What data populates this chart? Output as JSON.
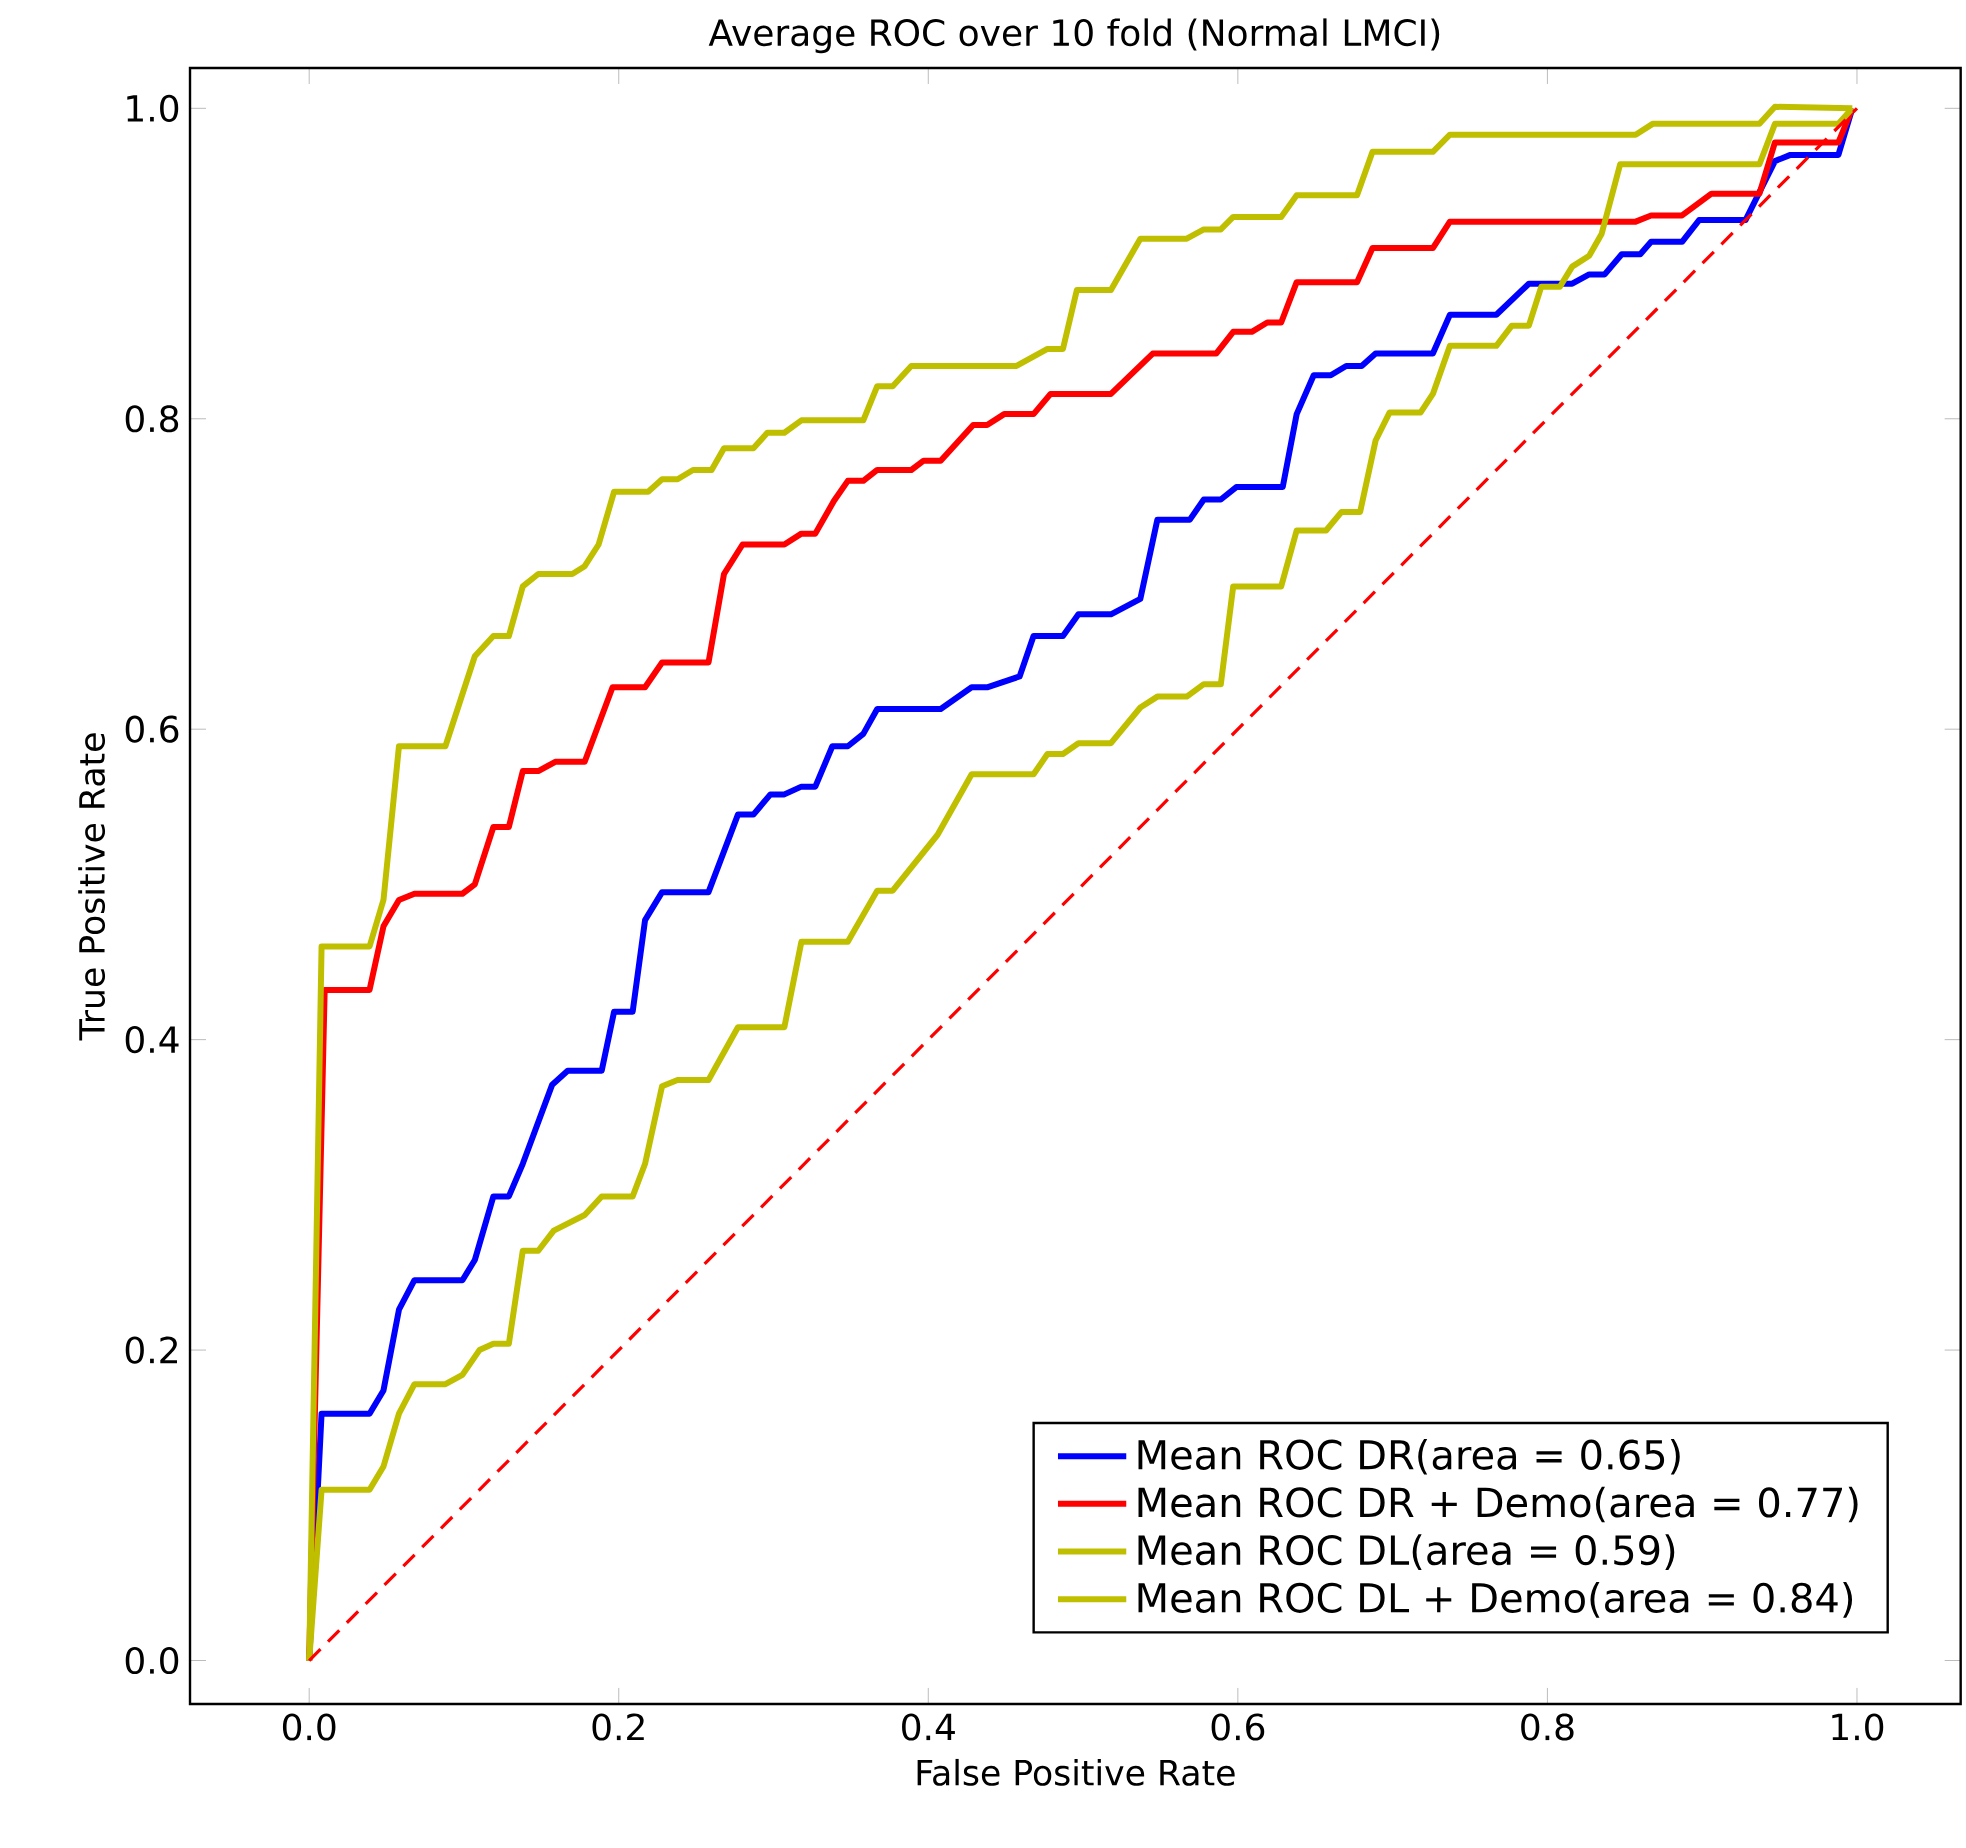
{
  "chart_data": {
    "type": "line",
    "title": "Average ROC over 10 fold (Normal LMCI)",
    "xlabel": "False Positive Rate",
    "ylabel": "True Positive Rate",
    "xlim": [
      -0.077,
      1.067
    ],
    "ylim": [
      -0.028,
      1.026
    ],
    "xticks": [
      {
        "value": 0,
        "label": "0.0"
      },
      {
        "value": 0.2,
        "label": "0.2"
      },
      {
        "value": 0.4,
        "label": "0.4"
      },
      {
        "value": 0.6,
        "label": "0.6"
      },
      {
        "value": 0.8,
        "label": "0.8"
      },
      {
        "value": 1,
        "label": "1.0"
      }
    ],
    "yticks": [
      {
        "value": 0,
        "label": "0.0"
      },
      {
        "value": 0.2,
        "label": "0.2"
      },
      {
        "value": 0.4,
        "label": "0.4"
      },
      {
        "value": 0.6,
        "label": "0.6"
      },
      {
        "value": 0.8,
        "label": "0.8"
      },
      {
        "value": 1,
        "label": "1.0"
      }
    ],
    "legend": "bottom right",
    "grid": false,
    "series": [
      {
        "name": "Mean ROC DR(area = 0.65)",
        "color": "#0000ff",
        "x": [
          0,
          0.008,
          0.039,
          0.048,
          0.058,
          0.068,
          0.099,
          0.107,
          0.119,
          0.129,
          0.138,
          0.157,
          0.167,
          0.189,
          0.197,
          0.209,
          0.217,
          0.228,
          0.258,
          0.277,
          0.287,
          0.298,
          0.307,
          0.318,
          0.327,
          0.338,
          0.348,
          0.358,
          0.367,
          0.408,
          0.428,
          0.438,
          0.459,
          0.468,
          0.487,
          0.497,
          0.518,
          0.537,
          0.548,
          0.569,
          0.578,
          0.589,
          0.599,
          0.629,
          0.638,
          0.649,
          0.66,
          0.67,
          0.68,
          0.689,
          0.726,
          0.737,
          0.767,
          0.788,
          0.816,
          0.827,
          0.837,
          0.848,
          0.86,
          0.867,
          0.887,
          0.898,
          0.928,
          0.947,
          0.957,
          0.988,
          0.997
        ],
        "values": [
          0,
          0.159,
          0.159,
          0.174,
          0.226,
          0.245,
          0.245,
          0.258,
          0.299,
          0.299,
          0.32,
          0.371,
          0.38,
          0.38,
          0.418,
          0.418,
          0.477,
          0.495,
          0.495,
          0.545,
          0.545,
          0.558,
          0.558,
          0.563,
          0.563,
          0.589,
          0.589,
          0.597,
          0.613,
          0.613,
          0.627,
          0.627,
          0.634,
          0.66,
          0.66,
          0.674,
          0.674,
          0.684,
          0.735,
          0.735,
          0.748,
          0.748,
          0.756,
          0.756,
          0.803,
          0.828,
          0.828,
          0.834,
          0.834,
          0.842,
          0.842,
          0.867,
          0.867,
          0.887,
          0.887,
          0.893,
          0.893,
          0.906,
          0.906,
          0.914,
          0.914,
          0.928,
          0.928,
          0.966,
          0.97,
          0.97,
          1.0
        ]
      },
      {
        "name": "Mean ROC DR + Demo(area = 0.77)",
        "color": "#ff0000",
        "x": [
          0,
          0.01,
          0.039,
          0.048,
          0.058,
          0.068,
          0.099,
          0.107,
          0.119,
          0.129,
          0.138,
          0.148,
          0.159,
          0.178,
          0.196,
          0.217,
          0.228,
          0.258,
          0.268,
          0.28,
          0.307,
          0.318,
          0.327,
          0.339,
          0.348,
          0.358,
          0.367,
          0.389,
          0.397,
          0.408,
          0.429,
          0.438,
          0.449,
          0.468,
          0.479,
          0.518,
          0.545,
          0.586,
          0.597,
          0.609,
          0.619,
          0.628,
          0.638,
          0.677,
          0.687,
          0.726,
          0.737,
          0.857,
          0.867,
          0.887,
          0.906,
          0.937,
          0.947,
          0.988,
          0.997
        ],
        "values": [
          0,
          0.432,
          0.432,
          0.473,
          0.49,
          0.494,
          0.494,
          0.5,
          0.537,
          0.537,
          0.573,
          0.573,
          0.579,
          0.579,
          0.627,
          0.627,
          0.643,
          0.643,
          0.7,
          0.719,
          0.719,
          0.726,
          0.726,
          0.747,
          0.76,
          0.76,
          0.767,
          0.767,
          0.773,
          0.773,
          0.796,
          0.796,
          0.803,
          0.803,
          0.816,
          0.816,
          0.842,
          0.842,
          0.856,
          0.856,
          0.862,
          0.862,
          0.888,
          0.888,
          0.91,
          0.91,
          0.927,
          0.927,
          0.931,
          0.931,
          0.945,
          0.945,
          0.978,
          0.978,
          1.0
        ]
      },
      {
        "name": "Mean ROC DL(area = 0.59)",
        "color": "#bfbf00",
        "x": [
          0,
          0.008,
          0.039,
          0.048,
          0.058,
          0.068,
          0.088,
          0.099,
          0.11,
          0.119,
          0.129,
          0.138,
          0.148,
          0.158,
          0.178,
          0.189,
          0.209,
          0.217,
          0.228,
          0.238,
          0.258,
          0.277,
          0.307,
          0.318,
          0.348,
          0.367,
          0.377,
          0.406,
          0.428,
          0.468,
          0.477,
          0.487,
          0.497,
          0.518,
          0.537,
          0.548,
          0.567,
          0.578,
          0.589,
          0.597,
          0.628,
          0.638,
          0.657,
          0.667,
          0.679,
          0.689,
          0.698,
          0.718,
          0.726,
          0.737,
          0.767,
          0.777,
          0.788,
          0.796,
          0.808,
          0.816,
          0.827,
          0.835,
          0.847,
          0.937,
          0.947,
          0.988,
          0.997
        ],
        "values": [
          0,
          0.11,
          0.11,
          0.125,
          0.159,
          0.178,
          0.178,
          0.184,
          0.2,
          0.204,
          0.204,
          0.264,
          0.264,
          0.277,
          0.287,
          0.299,
          0.299,
          0.32,
          0.37,
          0.374,
          0.374,
          0.408,
          0.408,
          0.463,
          0.463,
          0.496,
          0.496,
          0.532,
          0.571,
          0.571,
          0.584,
          0.584,
          0.591,
          0.591,
          0.614,
          0.621,
          0.621,
          0.629,
          0.629,
          0.692,
          0.692,
          0.728,
          0.728,
          0.74,
          0.74,
          0.786,
          0.804,
          0.804,
          0.816,
          0.847,
          0.847,
          0.86,
          0.86,
          0.885,
          0.885,
          0.898,
          0.905,
          0.919,
          0.964,
          0.964,
          0.99,
          0.99,
          1.0
        ]
      },
      {
        "name": "Mean ROC DL + Demo(area = 0.84)",
        "color": "#bfbf00",
        "x": [
          0,
          0.008,
          0.039,
          0.048,
          0.058,
          0.088,
          0.107,
          0.119,
          0.129,
          0.138,
          0.148,
          0.17,
          0.178,
          0.187,
          0.197,
          0.219,
          0.228,
          0.238,
          0.248,
          0.26,
          0.268,
          0.287,
          0.296,
          0.307,
          0.318,
          0.358,
          0.367,
          0.377,
          0.389,
          0.457,
          0.477,
          0.487,
          0.496,
          0.518,
          0.537,
          0.567,
          0.578,
          0.589,
          0.597,
          0.628,
          0.638,
          0.677,
          0.687,
          0.726,
          0.737,
          0.857,
          0.868,
          0.937,
          0.947,
          0.997
        ],
        "values": [
          0,
          0.46,
          0.46,
          0.49,
          0.589,
          0.589,
          0.647,
          0.66,
          0.66,
          0.692,
          0.7,
          0.7,
          0.705,
          0.719,
          0.753,
          0.753,
          0.761,
          0.761,
          0.767,
          0.767,
          0.781,
          0.781,
          0.791,
          0.791,
          0.799,
          0.799,
          0.821,
          0.821,
          0.834,
          0.834,
          0.845,
          0.845,
          0.883,
          0.883,
          0.916,
          0.916,
          0.922,
          0.922,
          0.93,
          0.93,
          0.944,
          0.944,
          0.972,
          0.972,
          0.983,
          0.983,
          0.99,
          0.99,
          1.001,
          1.0
        ]
      },
      {
        "color": "#ff0000",
        "line_style": "dashed",
        "x": [
          0,
          1
        ],
        "values": [
          0,
          1
        ]
      }
    ]
  }
}
